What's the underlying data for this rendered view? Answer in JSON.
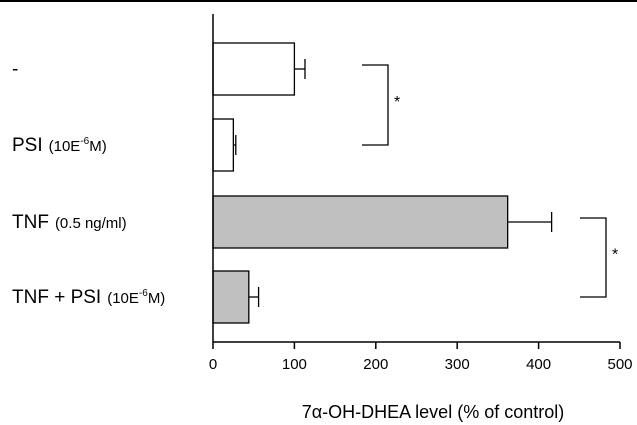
{
  "chart_data": {
    "type": "bar",
    "orientation": "horizontal",
    "categories": [
      {
        "name": "-",
        "annotation": "",
        "superscript": "",
        "annotation_end": ""
      },
      {
        "name": "PSI",
        "annotation": "(10E",
        "superscript": "-6",
        "annotation_end": "M)"
      },
      {
        "name": "TNF",
        "annotation": "(0.5 ng/ml)",
        "superscript": "",
        "annotation_end": ""
      },
      {
        "name": "TNF + PSI",
        "annotation": "(10E",
        "superscript": "-6",
        "annotation_end": "M)"
      }
    ],
    "values": [
      100,
      25,
      362,
      44
    ],
    "errors": [
      13,
      3,
      54,
      12
    ],
    "bar_colors": [
      "#ffffff",
      "#ffffff",
      "#c0c0c0",
      "#c0c0c0"
    ],
    "xlim": [
      0,
      500
    ],
    "xticks": [
      0,
      100,
      200,
      300,
      400,
      500
    ],
    "xlabel": "7α-OH-DHEA level (% of control)",
    "significance": [
      {
        "between": [
          0,
          1
        ],
        "label": "*"
      },
      {
        "between": [
          2,
          3
        ],
        "label": "*"
      }
    ]
  }
}
